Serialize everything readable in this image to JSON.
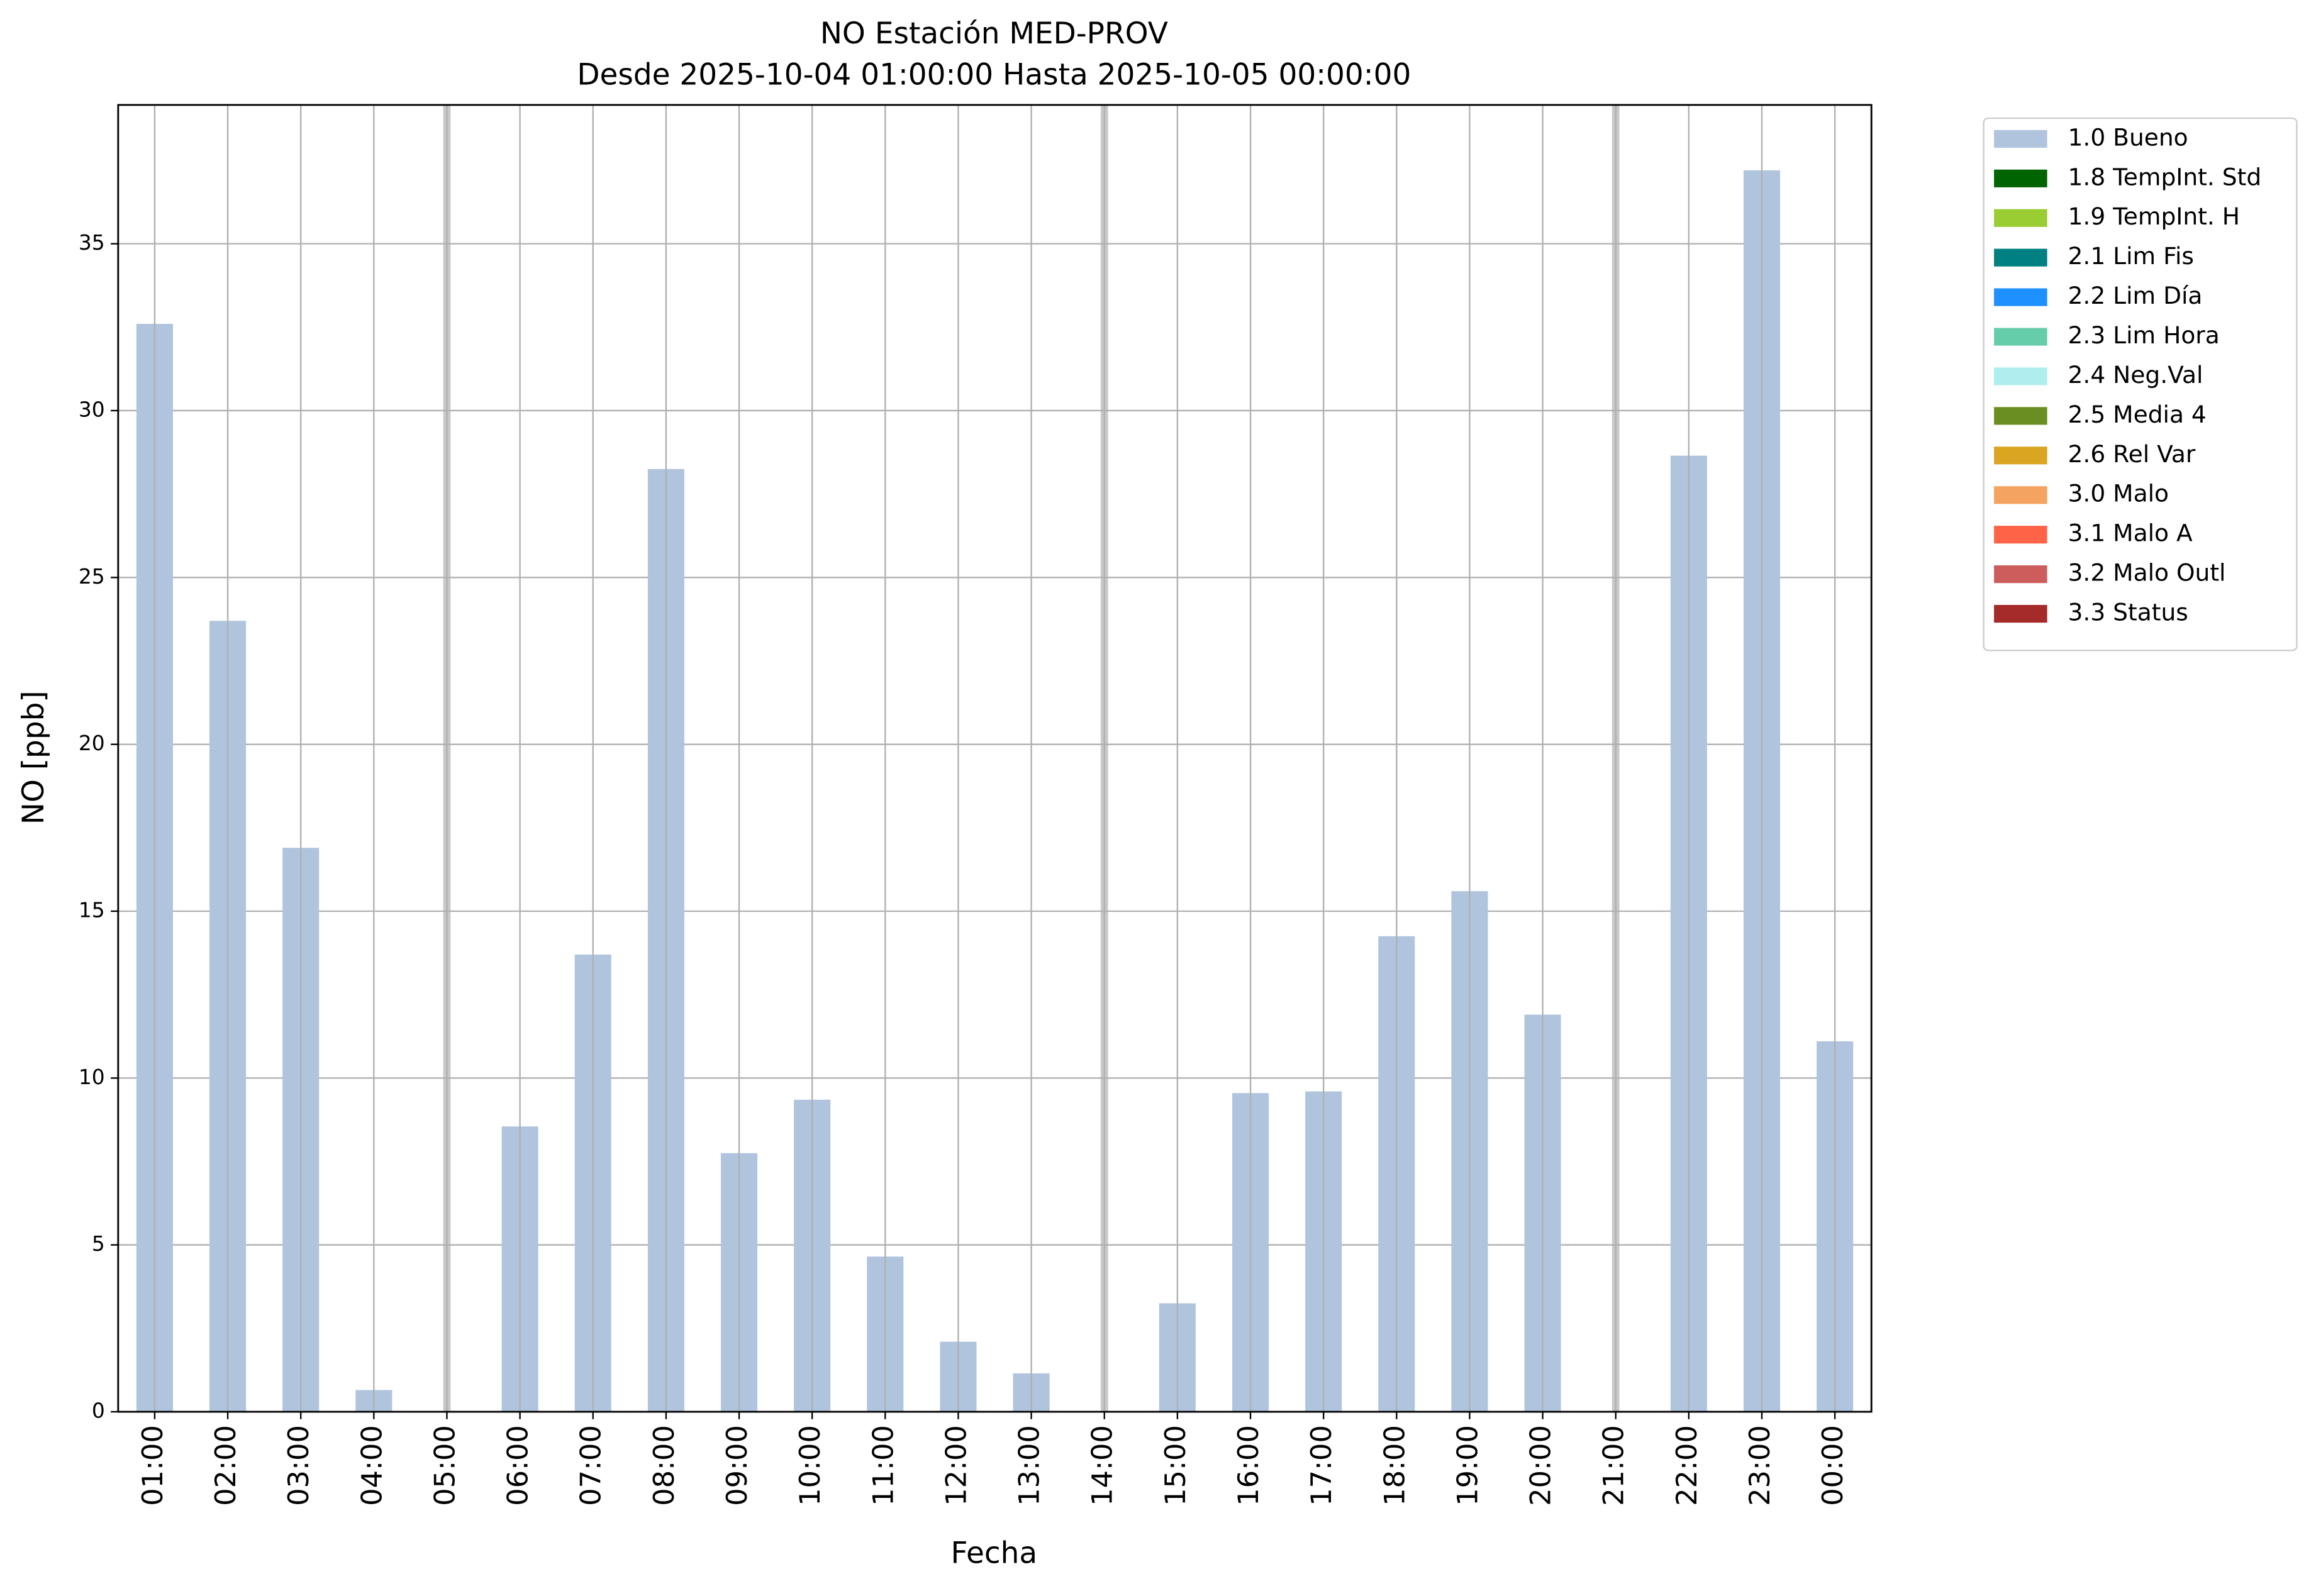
{
  "chart_data": {
    "type": "bar",
    "title": "NO Estación MED-PROV",
    "subtitle": "Desde 2025-10-04 01:00:00 Hasta 2025-10-05 00:00:00",
    "x_label": "Fecha",
    "y_label": "NO [ppb]",
    "categories": [
      "01:00",
      "02:00",
      "03:00",
      "04:00",
      "05:00",
      "06:00",
      "07:00",
      "08:00",
      "09:00",
      "10:00",
      "11:00",
      "12:00",
      "13:00",
      "14:00",
      "15:00",
      "16:00",
      "17:00",
      "18:00",
      "19:00",
      "20:00",
      "21:00",
      "22:00",
      "23:00",
      "00:00"
    ],
    "series": [
      {
        "name": "1.0 Bueno",
        "color": "#b0c4de",
        "values": [
          32.6,
          23.7,
          16.9,
          0.65,
          null,
          8.55,
          13.7,
          28.25,
          7.75,
          9.35,
          4.65,
          2.1,
          1.15,
          null,
          3.25,
          9.55,
          9.6,
          14.25,
          15.6,
          11.9,
          null,
          28.65,
          37.2,
          11.1
        ]
      }
    ],
    "legend": [
      {
        "name": "1.8 TempInt. Std",
        "color": "#006400"
      },
      {
        "name": "1.9 TempInt. H",
        "color": "#9acd32"
      },
      {
        "name": "2.1 Lim Fis",
        "color": "#008080"
      },
      {
        "name": "2.2 Lim Día",
        "color": "#1e90ff"
      },
      {
        "name": "2.3 Lim Hora",
        "color": "#66cdaa"
      },
      {
        "name": "2.4 Neg.Val",
        "color": "#afeeee"
      },
      {
        "name": "2.5 Media 4",
        "color": "#6b8e23"
      },
      {
        "name": "2.6 Rel Var",
        "color": "#daa520"
      },
      {
        "name": "3.0 Malo",
        "color": "#f4a460"
      },
      {
        "name": "3.1 Malo A",
        "color": "#ff6347"
      },
      {
        "name": "3.2 Malo Outl",
        "color": "#cd5c5c"
      },
      {
        "name": "3.3 Status",
        "color": "#a52a2a"
      }
    ],
    "ylim": [
      0,
      39.16
    ],
    "yticks": [
      0,
      5,
      10,
      15,
      20,
      25,
      30,
      35
    ],
    "grid": true,
    "legend_position": "outside right"
  }
}
